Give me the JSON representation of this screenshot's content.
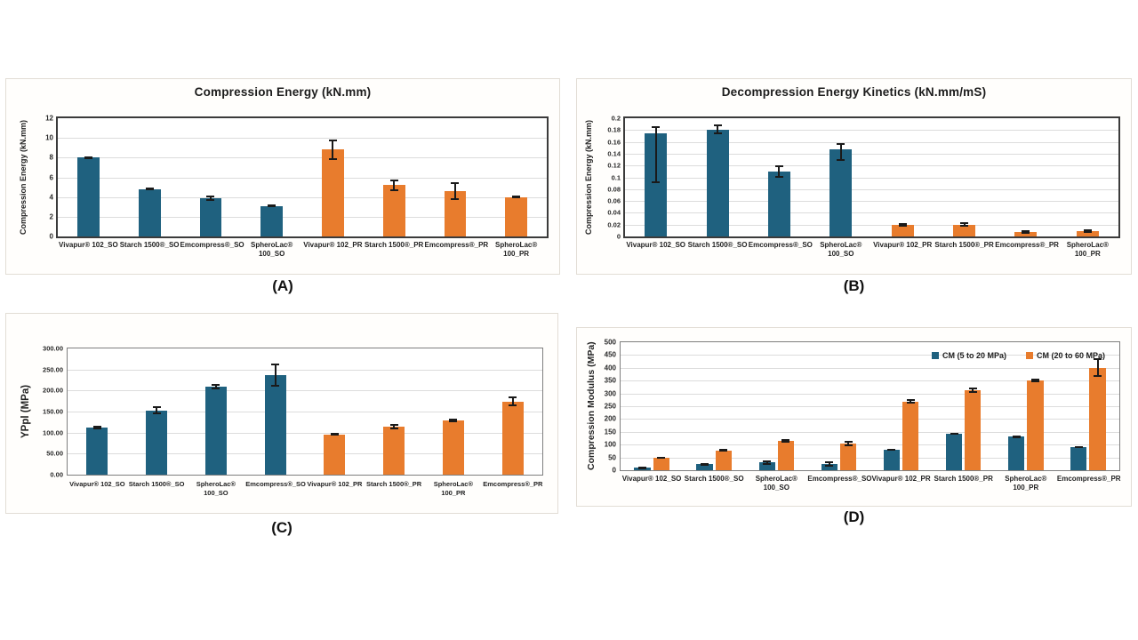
{
  "panels": {
    "a": {
      "caption": "(A)"
    },
    "b": {
      "caption": "(B)"
    },
    "c": {
      "caption": "(C)"
    },
    "d": {
      "caption": "(D)"
    }
  },
  "colors": {
    "blue": "#1f617f",
    "orange": "#e87c2d",
    "error": "#1a1a1a",
    "grid": "#dcdcdc",
    "dark_axis": "#3b3b3b",
    "gray_axis": "#7e7e7e"
  },
  "chart_data": [
    {
      "type": "bar",
      "title": "Compression Energy (kN.mm)",
      "ylabel": "Compression Energy (kN.mm)",
      "ylim": [
        0,
        12
      ],
      "yticks": [
        0,
        2,
        4,
        6,
        8,
        10,
        12
      ],
      "ytick_labels": [
        "0",
        "2",
        "4",
        "6",
        "8",
        "10",
        "12"
      ],
      "grid": true,
      "categories": [
        "Vivapur® 102_SO",
        "Starch 1500®_SO",
        "Emcompress®_SO",
        "SpheroLac®\n100_SO",
        "Vivapur® 102_PR",
        "Starch 1500®_PR",
        "Emcompress®_PR",
        "SpheroLac®\n100_PR"
      ],
      "values": [
        8.0,
        4.8,
        3.9,
        3.1,
        8.8,
        5.2,
        4.6,
        4.0
      ],
      "err": [
        0.15,
        0.15,
        0.25,
        0.12,
        1.0,
        0.6,
        0.9,
        0.15
      ],
      "bar_colors": [
        "blue",
        "blue",
        "blue",
        "blue",
        "orange",
        "orange",
        "orange",
        "orange"
      ]
    },
    {
      "type": "bar",
      "title": "Decompression Energy Kinetics (kN.mm/mS)",
      "ylabel": "Compression Energy (kN.mm)",
      "ylim": [
        0,
        0.2
      ],
      "yticks": [
        0,
        0.02,
        0.04,
        0.06,
        0.08,
        0.1,
        0.12,
        0.14,
        0.16,
        0.18,
        0.2
      ],
      "ytick_labels": [
        "0",
        "0.02",
        "0.04",
        "0.06",
        "0.08",
        "0.1",
        "0.12",
        "0.14",
        "0.16",
        "0.18",
        "0.2"
      ],
      "grid": true,
      "categories": [
        "Vivapur® 102_SO",
        "Starch 1500®_SO",
        "Emcompress®_SO",
        "SpheroLac®\n100_SO",
        "Vivapur® 102_PR",
        "Starch 1500®_PR",
        "Emcompress®_PR",
        "SpheroLac®\n100_PR"
      ],
      "values": [
        0.175,
        0.181,
        0.11,
        0.148,
        0.019,
        0.02,
        0.008,
        0.009
      ],
      "err": [
        0.012,
        0.008,
        0.011,
        0.01,
        0.003,
        0.004,
        0.003,
        0.003
      ],
      "err_down": [
        0.085,
        0.008,
        0.011,
        0.02,
        0.003,
        0.004,
        0.003,
        0.003
      ],
      "bar_colors": [
        "blue",
        "blue",
        "blue",
        "blue",
        "orange",
        "orange",
        "orange",
        "orange"
      ]
    },
    {
      "type": "bar",
      "title": "",
      "ylabel": "YPpl (MPa)",
      "ylim": [
        0,
        300
      ],
      "yticks": [
        0,
        50,
        100,
        150,
        200,
        250,
        300
      ],
      "ytick_labels": [
        "0.00",
        "50.00",
        "100.00",
        "150.00",
        "200.00",
        "250.00",
        "300.00"
      ],
      "grid": true,
      "categories": [
        "Vivapur® 102_SO",
        "Starch 1500®_SO",
        "SpheroLac® 100_SO",
        "Emcompress®_SO",
        "Vivapur® 102_PR",
        "Starch 1500®_PR",
        "SpheroLac® 100_PR",
        "Emcompress®_PR"
      ],
      "values": [
        112,
        153,
        209,
        237,
        96,
        114,
        129,
        174
      ],
      "err": [
        4,
        9,
        7,
        28,
        3,
        6,
        4,
        12
      ],
      "bar_colors": [
        "blue",
        "blue",
        "blue",
        "blue",
        "orange",
        "orange",
        "orange",
        "orange"
      ]
    },
    {
      "type": "bar",
      "title": "",
      "ylabel": "Compression Modulus (MPa)",
      "ylim": [
        0,
        500
      ],
      "yticks": [
        0,
        50,
        100,
        150,
        200,
        250,
        300,
        350,
        400,
        450,
        500
      ],
      "ytick_labels": [
        "0",
        "50",
        "100",
        "150",
        "200",
        "250",
        "300",
        "350",
        "400",
        "450",
        "500"
      ],
      "grid": true,
      "legend_position": "top-right",
      "categories": [
        "Vivapur® 102_SO",
        "Starch 1500®_SO",
        "SpheroLac®\n100_SO",
        "Emcompress®_SO",
        "Vivapur® 102_PR",
        "Starch 1500®_PR",
        "SpheroLac®\n100_PR",
        "Emcompress®_PR"
      ],
      "series": [
        {
          "name": "CM (5 to 20 MPa)",
          "color": "blue",
          "values": [
            9,
            23,
            31,
            25,
            80,
            143,
            131,
            90
          ],
          "err": [
            2,
            3,
            9,
            11,
            3,
            4,
            5,
            4
          ]
        },
        {
          "name": "CM (20 to 60 MPa)",
          "color": "orange",
          "values": [
            48,
            78,
            114,
            104,
            269,
            312,
            350,
            401
          ],
          "err": [
            4,
            4,
            6,
            9,
            9,
            11,
            7,
            35
          ]
        }
      ]
    }
  ]
}
